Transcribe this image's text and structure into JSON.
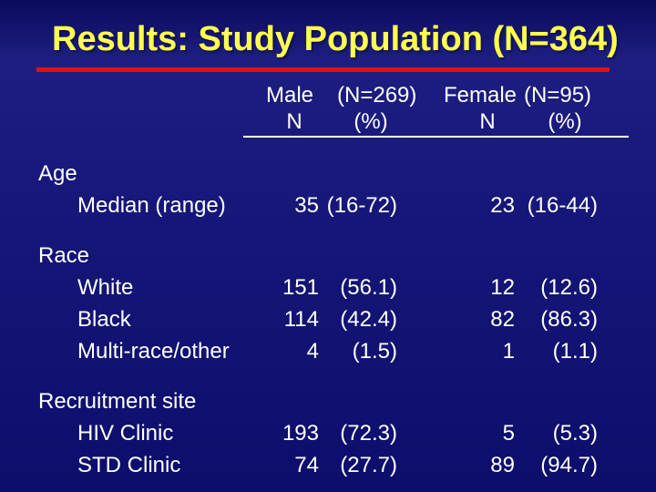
{
  "slide": {
    "title": "Results: Study Population (N=364)",
    "colors": {
      "background_top": "#0b0b5e",
      "background_mid": "#1e1e80",
      "background_bottom": "#0d0d6c",
      "title_text": "#ffff4f",
      "accent_line": "#dd1111",
      "body_text": "#ffffff"
    }
  },
  "table": {
    "header": {
      "male_group_label": "Male",
      "male_group_count": "(N=269)",
      "female_group_label": "Female",
      "female_group_count": "(N=95)",
      "male_n_col": "N",
      "male_pct_col": "(%)",
      "female_n_col": "N",
      "female_pct_col": "(%)"
    },
    "sections": [
      {
        "label": "Age",
        "rows": [
          {
            "label": "Median (range)",
            "male_n": "35",
            "male_pct": "(16-72)",
            "female_n": "23",
            "female_pct": "(16-44)"
          }
        ]
      },
      {
        "label": "Race",
        "rows": [
          {
            "label": "White",
            "male_n": "151",
            "male_pct": "(56.1)",
            "female_n": "12",
            "female_pct": "(12.6)"
          },
          {
            "label": "Black",
            "male_n": "114",
            "male_pct": "(42.4)",
            "female_n": "82",
            "female_pct": "(86.3)"
          },
          {
            "label": "Multi-race/other",
            "male_n": "4",
            "male_pct": "(1.5)",
            "female_n": "1",
            "female_pct": "(1.1)"
          }
        ]
      },
      {
        "label": "Recruitment site",
        "rows": [
          {
            "label": "HIV Clinic",
            "male_n": "193",
            "male_pct": "(72.3)",
            "female_n": "5",
            "female_pct": "(5.3)"
          },
          {
            "label": "STD Clinic",
            "male_n": "74",
            "male_pct": "(27.7)",
            "female_n": "89",
            "female_pct": "(94.7)"
          }
        ]
      }
    ]
  }
}
